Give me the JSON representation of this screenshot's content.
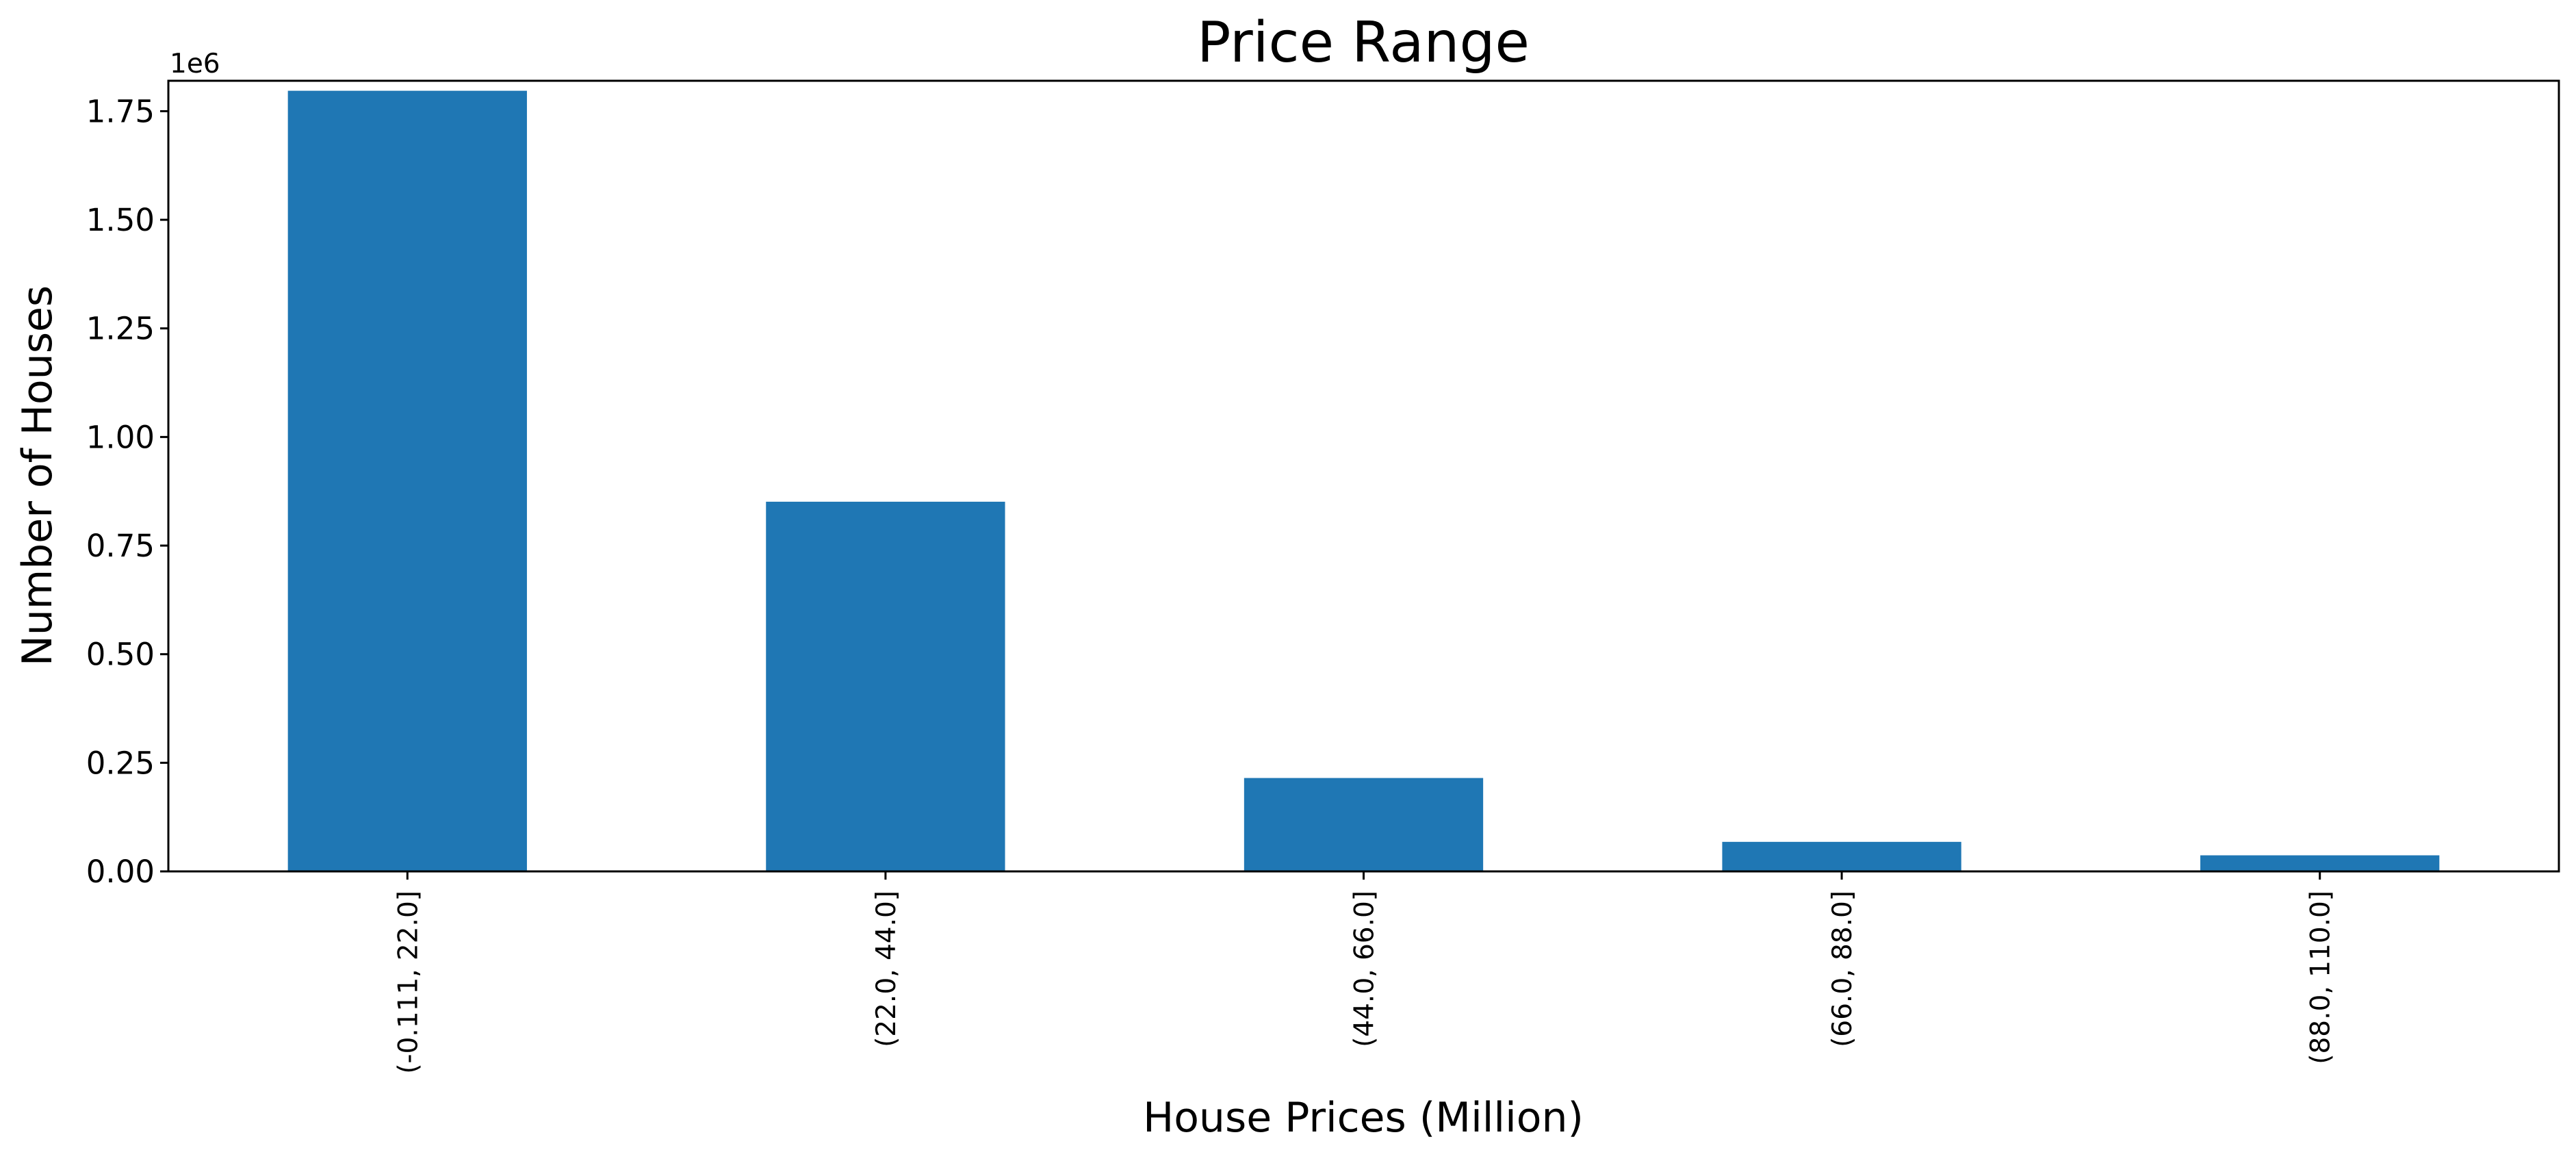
{
  "chart_data": {
    "type": "bar",
    "title": "Price Range",
    "xlabel": "House Prices (Million)",
    "ylabel": "Number of Houses",
    "y_offset_label": "1e6",
    "y_scale": 1000000,
    "categories": [
      "(-0.111, 22.0]",
      "(22.0, 44.0]",
      "(44.0, 66.0]",
      "(66.0, 88.0]",
      "(88.0, 110.0]"
    ],
    "values": [
      1797000,
      851000,
      215000,
      68000,
      37000
    ],
    "ylim": [
      0,
      1820000
    ],
    "yticks": [
      0,
      250000,
      500000,
      750000,
      1000000,
      1250000,
      1500000,
      1750000
    ],
    "ytick_labels": [
      "0.00",
      "0.25",
      "0.50",
      "0.75",
      "1.00",
      "1.25",
      "1.50",
      "1.75"
    ],
    "grid": false,
    "legend": "none",
    "bar_color": "#1f77b4"
  }
}
